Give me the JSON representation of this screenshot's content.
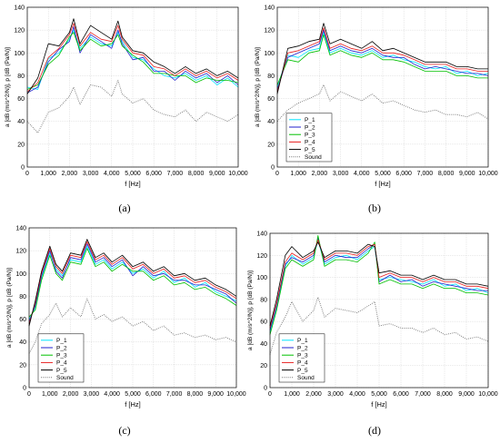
{
  "figure": {
    "panels": [
      {
        "id": "a",
        "caption": "(a)",
        "legend": null
      },
      {
        "id": "b",
        "caption": "(b)",
        "legend": "bottom-left"
      },
      {
        "id": "c",
        "caption": "(c)",
        "legend": "bottom-left"
      },
      {
        "id": "d",
        "caption": "(d)",
        "legend": "bottom-left"
      }
    ]
  },
  "chart_data": [
    {
      "type": "line",
      "panel": "a",
      "xlabel": "f [Hz]",
      "ylabel": "a [dB (m/s^2/N)],  p [dB (Pa/N)]",
      "xlim": [
        0,
        10000
      ],
      "ylim": [
        0,
        140
      ],
      "xticks": [
        "0",
        "1,000",
        "2,000",
        "3,000",
        "4,000",
        "5,000",
        "6,000",
        "7,000",
        "8,000",
        "9,000",
        "10,000"
      ],
      "yticks": [
        "0",
        "20",
        "40",
        "60",
        "80",
        "100",
        "120",
        "140"
      ],
      "grid": true,
      "x": [
        0,
        500,
        1000,
        1500,
        2000,
        2200,
        2500,
        3000,
        3500,
        4000,
        4300,
        4500,
        5000,
        5500,
        6000,
        6500,
        7000,
        7500,
        8000,
        8500,
        9000,
        9500,
        10000
      ],
      "series": [
        {
          "name": "P_1",
          "color": "#00e5ff",
          "style": "solid",
          "values": [
            70,
            68,
            95,
            100,
            112,
            120,
            104,
            114,
            108,
            106,
            118,
            110,
            96,
            94,
            86,
            80,
            78,
            82,
            76,
            80,
            72,
            78,
            70
          ]
        },
        {
          "name": "P_2",
          "color": "#2222cc",
          "style": "solid",
          "values": [
            65,
            70,
            92,
            103,
            110,
            123,
            100,
            116,
            110,
            104,
            120,
            108,
            94,
            96,
            84,
            84,
            76,
            84,
            78,
            82,
            74,
            80,
            72
          ]
        },
        {
          "name": "P_3",
          "color": "#00c000",
          "style": "solid",
          "values": [
            68,
            72,
            90,
            98,
            114,
            118,
            102,
            112,
            106,
            108,
            116,
            106,
            98,
            92,
            82,
            82,
            80,
            80,
            74,
            78,
            76,
            76,
            74
          ]
        },
        {
          "name": "P_4",
          "color": "#e82020",
          "style": "solid",
          "values": [
            66,
            74,
            96,
            104,
            116,
            126,
            106,
            118,
            112,
            110,
            124,
            112,
            100,
            98,
            88,
            86,
            80,
            86,
            80,
            84,
            78,
            82,
            76
          ]
        },
        {
          "name": "P_5",
          "color": "#000000",
          "style": "solid",
          "values": [
            64,
            78,
            108,
            106,
            118,
            130,
            108,
            124,
            118,
            112,
            128,
            114,
            102,
            100,
            92,
            88,
            82,
            88,
            82,
            86,
            80,
            84,
            78
          ]
        },
        {
          "name": "Sound",
          "color": "#777777",
          "style": "dotted",
          "values": [
            40,
            30,
            48,
            52,
            62,
            70,
            55,
            72,
            70,
            62,
            76,
            64,
            56,
            60,
            50,
            46,
            44,
            50,
            40,
            48,
            44,
            40,
            46
          ]
        }
      ]
    },
    {
      "type": "line",
      "panel": "b",
      "xlabel": "f [Hz]",
      "ylabel": "a [dB (m/s^2/N)],  p [dB (Pa/N)]",
      "xlim": [
        0,
        10000
      ],
      "ylim": [
        0,
        140
      ],
      "xticks": [
        "0",
        "1,000",
        "2,000",
        "3,000",
        "4,000",
        "5,000",
        "6,000",
        "7,000",
        "8,000",
        "9,000",
        "10,000"
      ],
      "yticks": [
        "0",
        "20",
        "40",
        "60",
        "80",
        "100",
        "120",
        "140"
      ],
      "grid": true,
      "legend_position": "bottom-left",
      "x": [
        0,
        500,
        1000,
        1500,
        2000,
        2200,
        2500,
        3000,
        3500,
        4000,
        4500,
        5000,
        5500,
        6000,
        6500,
        7000,
        7500,
        8000,
        8500,
        9000,
        9500,
        10000
      ],
      "series": [
        {
          "name": "P_1",
          "color": "#00e5ff",
          "style": "solid",
          "values": [
            70,
            98,
            96,
            102,
            104,
            118,
            100,
            104,
            100,
            98,
            102,
            96,
            98,
            94,
            92,
            88,
            86,
            88,
            82,
            84,
            80,
            82
          ]
        },
        {
          "name": "P_2",
          "color": "#2222cc",
          "style": "solid",
          "values": [
            68,
            96,
            100,
            104,
            108,
            120,
            102,
            106,
            102,
            100,
            104,
            98,
            96,
            96,
            90,
            86,
            88,
            86,
            84,
            82,
            82,
            80
          ]
        },
        {
          "name": "P_3",
          "color": "#00c000",
          "style": "solid",
          "values": [
            72,
            94,
            92,
            100,
            102,
            116,
            98,
            102,
            98,
            96,
            100,
            94,
            94,
            92,
            88,
            84,
            84,
            84,
            80,
            80,
            78,
            78
          ]
        },
        {
          "name": "P_4",
          "color": "#e82020",
          "style": "solid",
          "values": [
            66,
            100,
            102,
            106,
            110,
            122,
            104,
            108,
            104,
            102,
            106,
            100,
            100,
            98,
            94,
            90,
            90,
            90,
            86,
            86,
            84,
            84
          ]
        },
        {
          "name": "P_5",
          "color": "#000000",
          "style": "solid",
          "values": [
            64,
            104,
            106,
            110,
            112,
            126,
            108,
            112,
            108,
            104,
            110,
            102,
            104,
            100,
            96,
            92,
            92,
            92,
            88,
            88,
            86,
            86
          ]
        },
        {
          "name": "Sound",
          "color": "#777777",
          "style": "dotted",
          "values": [
            40,
            50,
            56,
            60,
            64,
            72,
            58,
            66,
            62,
            58,
            64,
            56,
            58,
            54,
            50,
            48,
            50,
            46,
            46,
            44,
            48,
            42
          ]
        }
      ]
    },
    {
      "type": "line",
      "panel": "c",
      "xlabel": "f [Hz]",
      "ylabel": "a [dB (m/s^2/N)],  p [dB (Pa/N)]",
      "xlim": [
        0,
        10000
      ],
      "ylim": [
        0,
        140
      ],
      "xticks": [
        "0",
        "1,000",
        "2,000",
        "3,000",
        "4,000",
        "5,000",
        "6,000",
        "7,000",
        "8,000",
        "9,000",
        "10,000"
      ],
      "yticks": [
        "0",
        "20",
        "40",
        "60",
        "80",
        "100",
        "120",
        "140"
      ],
      "grid": true,
      "legend_position": "bottom-left",
      "x": [
        0,
        300,
        600,
        1000,
        1300,
        1600,
        2000,
        2500,
        2800,
        3200,
        3600,
        4000,
        4500,
        5000,
        5500,
        6000,
        6500,
        7000,
        7500,
        8000,
        8500,
        9000,
        9500,
        10000
      ],
      "series": [
        {
          "name": "P_1",
          "color": "#00e5ff",
          "style": "solid",
          "values": [
            60,
            70,
            96,
            118,
            104,
            98,
            112,
            110,
            124,
            108,
            112,
            104,
            110,
            100,
            104,
            96,
            102,
            92,
            96,
            88,
            92,
            84,
            80,
            76
          ]
        },
        {
          "name": "P_2",
          "color": "#2222cc",
          "style": "solid",
          "values": [
            58,
            72,
            98,
            120,
            102,
            96,
            114,
            112,
            126,
            110,
            114,
            106,
            112,
            98,
            106,
            98,
            100,
            94,
            94,
            90,
            90,
            86,
            82,
            74
          ]
        },
        {
          "name": "P_3",
          "color": "#00c000",
          "style": "solid",
          "values": [
            62,
            68,
            94,
            116,
            100,
            94,
            110,
            108,
            122,
            106,
            110,
            102,
            108,
            102,
            102,
            94,
            98,
            90,
            92,
            86,
            88,
            82,
            78,
            72
          ]
        },
        {
          "name": "P_4",
          "color": "#e82020",
          "style": "solid",
          "values": [
            56,
            74,
            100,
            122,
            106,
            100,
            116,
            114,
            128,
            112,
            116,
            108,
            114,
            104,
            108,
            100,
            104,
            96,
            98,
            92,
            94,
            88,
            84,
            78
          ]
        },
        {
          "name": "P_5",
          "color": "#000000",
          "style": "solid",
          "values": [
            54,
            76,
            102,
            124,
            108,
            102,
            118,
            116,
            130,
            114,
            118,
            110,
            116,
            106,
            110,
            102,
            106,
            98,
            100,
            94,
            96,
            90,
            86,
            80
          ]
        },
        {
          "name": "Sound",
          "color": "#777777",
          "style": "dotted",
          "values": [
            30,
            40,
            56,
            64,
            74,
            62,
            70,
            62,
            78,
            60,
            64,
            58,
            62,
            54,
            58,
            50,
            54,
            46,
            48,
            44,
            46,
            42,
            44,
            40
          ]
        }
      ]
    },
    {
      "type": "line",
      "panel": "d",
      "xlabel": "f [Hz]",
      "ylabel": "a [dB (m/s^2/N)],  p [dB (Pa/N)]",
      "xlim": [
        0,
        10000
      ],
      "ylim": [
        0,
        140
      ],
      "xticks": [
        "0",
        "1,000",
        "2,000",
        "3,000",
        "4,000",
        "5,000",
        "6,000",
        "7,000",
        "8,000",
        "9,000",
        "10,000"
      ],
      "yticks": [
        "0",
        "20",
        "40",
        "60",
        "80",
        "100",
        "120",
        "140"
      ],
      "grid": true,
      "legend_position": "bottom-left",
      "x": [
        0,
        300,
        700,
        1000,
        1500,
        2000,
        2200,
        2500,
        3000,
        3500,
        4000,
        4500,
        4800,
        5000,
        5500,
        6000,
        6500,
        7000,
        7500,
        8000,
        8500,
        9000,
        9500,
        10000
      ],
      "series": [
        {
          "name": "P_1",
          "color": "#00e5ff",
          "style": "solid",
          "values": [
            50,
            72,
            110,
            120,
            112,
            118,
            134,
            112,
            118,
            120,
            116,
            124,
            128,
            98,
            100,
            98,
            96,
            94,
            98,
            92,
            94,
            88,
            90,
            86
          ]
        },
        {
          "name": "P_2",
          "color": "#2222cc",
          "style": "solid",
          "values": [
            52,
            74,
            112,
            118,
            114,
            120,
            136,
            114,
            120,
            118,
            118,
            126,
            130,
            96,
            102,
            96,
            98,
            92,
            96,
            94,
            92,
            90,
            88,
            88
          ]
        },
        {
          "name": "P_3",
          "color": "#00c000",
          "style": "solid",
          "values": [
            48,
            70,
            108,
            116,
            110,
            116,
            138,
            110,
            116,
            116,
            114,
            122,
            132,
            94,
            98,
            94,
            94,
            90,
            94,
            90,
            90,
            86,
            86,
            84
          ]
        },
        {
          "name": "P_4",
          "color": "#e82020",
          "style": "solid",
          "values": [
            54,
            76,
            114,
            122,
            116,
            122,
            134,
            116,
            122,
            122,
            120,
            128,
            130,
            100,
            104,
            100,
            100,
            96,
            100,
            96,
            96,
            92,
            92,
            90
          ]
        },
        {
          "name": "P_5",
          "color": "#000000",
          "style": "solid",
          "values": [
            56,
            80,
            120,
            128,
            118,
            124,
            132,
            118,
            124,
            124,
            122,
            130,
            128,
            104,
            106,
            102,
            102,
            98,
            102,
            98,
            98,
            94,
            94,
            92
          ]
        },
        {
          "name": "Sound",
          "color": "#777777",
          "style": "dotted",
          "values": [
            30,
            50,
            64,
            78,
            60,
            70,
            82,
            64,
            72,
            70,
            68,
            74,
            78,
            56,
            58,
            54,
            54,
            50,
            54,
            48,
            50,
            44,
            46,
            42
          ]
        }
      ]
    }
  ]
}
